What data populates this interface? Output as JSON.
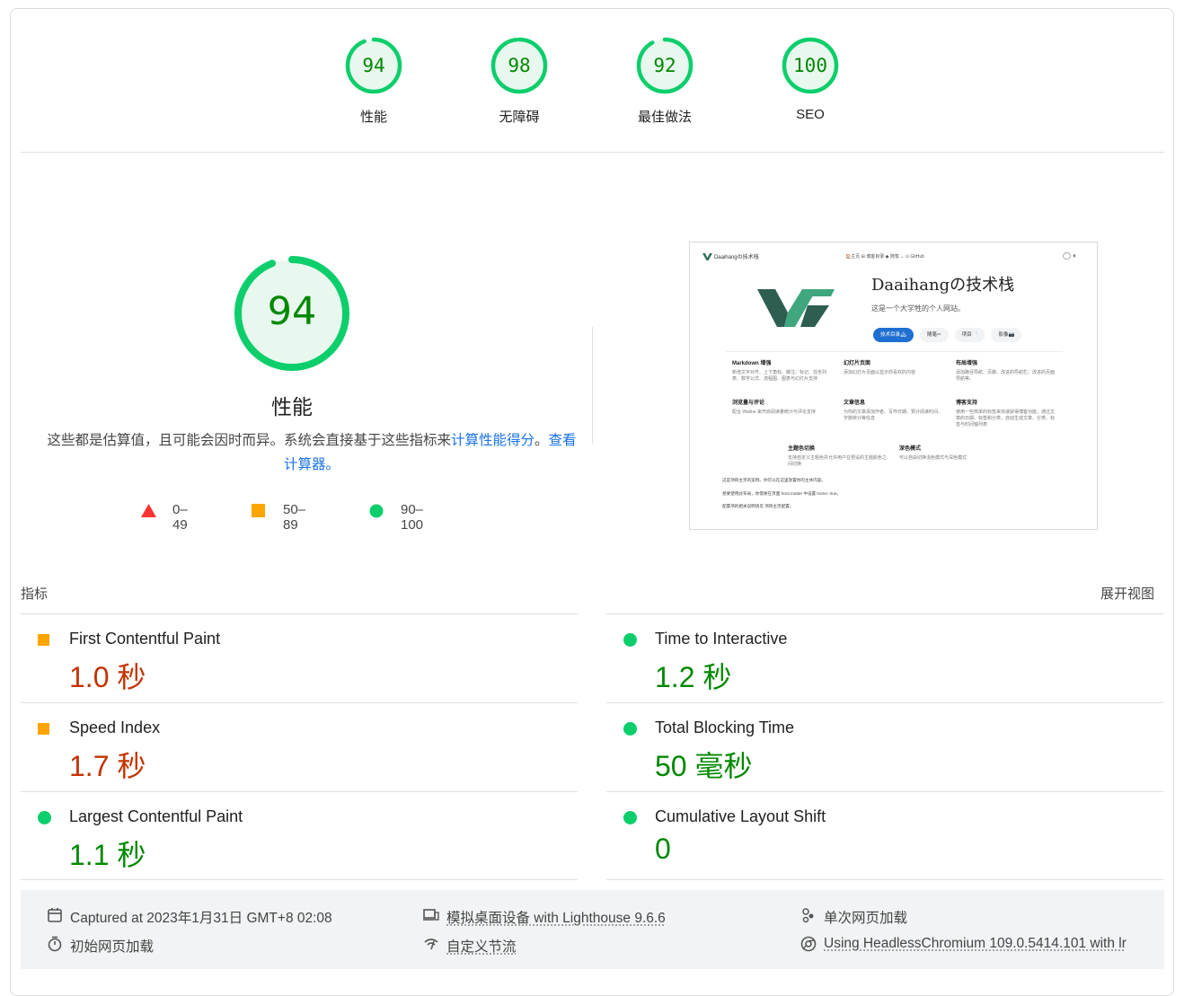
{
  "categories": [
    {
      "label": "性能",
      "score": "94",
      "fraction": 0.94
    },
    {
      "label": "无障碍",
      "score": "98",
      "fraction": 0.98
    },
    {
      "label": "最佳做法",
      "score": "92",
      "fraction": 0.92
    },
    {
      "label": "SEO",
      "score": "100",
      "fraction": 1.0
    }
  ],
  "performance": {
    "score": "94",
    "fraction": 0.94,
    "title": "性能",
    "desc_prefix": "这些都是估算值，且可能会因时而异。系统会直接基于这些指标来",
    "desc_link1": "计算性能得分",
    "desc_mid": "。",
    "desc_link2": "查看计算器。"
  },
  "scale": [
    {
      "range": "0–49",
      "shape": "triangle",
      "color": "#ff3333"
    },
    {
      "range": "50–89",
      "shape": "square",
      "color": "#ffa400"
    },
    {
      "range": "90–100",
      "shape": "circle",
      "color": "#0cce6b"
    }
  ],
  "thumbnail": {
    "site_name": "Daaihangの技术栈",
    "nav_links": "🏠主页   ⊞ 博客目录   ◆ 随笔 ⌄   ⊙ GitHub",
    "title": "Daaihangの技术栈",
    "subtitle": "这是一个大学牲的个人网站。",
    "buttons": [
      "技术目录🏔",
      "随笔✏",
      "项目📄",
      "影像📷"
    ],
    "features": [
      {
        "title": "Markdown 增强",
        "text": "新增文字对齐、上下角标、脚注、标记、任务列表、数学公式、流程图、图表与幻灯片支持"
      },
      {
        "title": "幻灯片页面",
        "text": "添加幻灯片页面以显示你喜欢的内容"
      },
      {
        "title": "布局增强",
        "text": "添加路径导航、页脚、改进的导航栏、改进的页面导航等。"
      },
      {
        "title": "浏览量与评论",
        "text": "配合 Waline 来开启阅读量统计与评论支持"
      },
      {
        "title": "文章信息",
        "text": "为你的文章添加作者、写作日期、预计阅读时间、字数统计等信息"
      },
      {
        "title": "博客支持",
        "text": "使用一些简单的标签来快速获得博客功能，通过文章的日期、标签和分类，自动生成文章、分类、标签与时间轴列表"
      },
      {
        "title": "主题色切换",
        "text": "支持自定义主题色并允许用户在预设的主题颜色之间切换"
      },
      {
        "title": "深色模式",
        "text": "可以自由切换浅色模式与深色模式"
      }
    ],
    "footer_lines": [
      "这是项目主页的案例。你可以在这里放置你的主体内容。",
      "想要使用此布局，你需要在页面 front matter 中设置 home: true。",
      "配置项的相关说明请见 项目主页配置。"
    ]
  },
  "metrics": {
    "header": "指标",
    "toggle": "展开视图",
    "items": [
      {
        "title": "First Contentful Paint",
        "value": "1.0 秒",
        "status": "average"
      },
      {
        "title": "Time to Interactive",
        "value": "1.2 秒",
        "status": "pass"
      },
      {
        "title": "Speed Index",
        "value": "1.7 秒",
        "status": "average"
      },
      {
        "title": "Total Blocking Time",
        "value": "50 毫秒",
        "status": "pass"
      },
      {
        "title": "Largest Contentful Paint",
        "value": "1.1 秒",
        "status": "pass"
      },
      {
        "title": "Cumulative Layout Shift",
        "value": "0",
        "status": "pass"
      }
    ]
  },
  "footer": {
    "captured": "Captured at 2023年1月31日 GMT+8 02:08",
    "initial_load": "初始网页加载",
    "device": "模拟桌面设备 with Lighthouse 9.6.6",
    "throttling": "自定义节流",
    "single_load": "单次网页加载",
    "browser": "Using HeadlessChromium 109.0.5414.101 with lr"
  },
  "colors": {
    "pass": "#0cce6b",
    "pass_text": "#008800",
    "average": "#ffa400",
    "average_text": "#c33300",
    "fail": "#ff3333",
    "link": "#1a73e8"
  }
}
